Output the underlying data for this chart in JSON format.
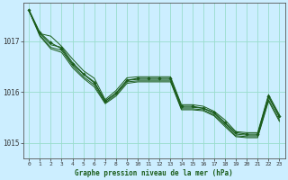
{
  "background_color": "#cceeff",
  "grid_color": "#99ddcc",
  "line_color": "#1a5c1a",
  "xlabel": "Graphe pression niveau de la mer (hPa)",
  "xlim": [
    -0.5,
    23.5
  ],
  "ylim": [
    1014.7,
    1017.75
  ],
  "yticks": [
    1015,
    1016,
    1017
  ],
  "xticks": [
    0,
    1,
    2,
    3,
    4,
    5,
    6,
    7,
    8,
    9,
    10,
    11,
    12,
    13,
    14,
    15,
    16,
    17,
    18,
    19,
    20,
    21,
    22,
    23
  ],
  "series": [
    [
      1017.6,
      1017.15,
      1017.1,
      1016.9,
      1016.65,
      1016.42,
      1016.27,
      1015.85,
      1016.03,
      1016.28,
      1016.3,
      1016.3,
      1016.3,
      1016.3,
      1015.75,
      1015.75,
      1015.72,
      1015.62,
      1015.45,
      1015.22,
      1015.2,
      1015.2,
      1015.95,
      1015.55
    ],
    [
      1017.6,
      1017.15,
      1016.93,
      1016.88,
      1016.58,
      1016.36,
      1016.2,
      1015.82,
      1015.98,
      1016.23,
      1016.25,
      1016.25,
      1016.25,
      1016.25,
      1015.7,
      1015.7,
      1015.68,
      1015.58,
      1015.38,
      1015.17,
      1015.15,
      1015.15,
      1015.9,
      1015.5
    ],
    [
      1017.6,
      1017.12,
      1016.88,
      1016.82,
      1016.52,
      1016.3,
      1016.14,
      1015.79,
      1015.95,
      1016.2,
      1016.22,
      1016.22,
      1016.22,
      1016.22,
      1015.67,
      1015.67,
      1015.65,
      1015.55,
      1015.35,
      1015.14,
      1015.12,
      1015.12,
      1015.85,
      1015.45
    ],
    [
      1017.6,
      1017.1,
      1016.85,
      1016.78,
      1016.48,
      1016.27,
      1016.1,
      1015.77,
      1015.92,
      1016.17,
      1016.2,
      1016.2,
      1016.2,
      1016.2,
      1015.65,
      1015.65,
      1015.63,
      1015.53,
      1015.32,
      1015.12,
      1015.1,
      1015.1,
      1015.82,
      1015.42
    ]
  ],
  "main_series_x": [
    0,
    1,
    2,
    3,
    4,
    5,
    6,
    7,
    8,
    9,
    10,
    11,
    12,
    13,
    14,
    15,
    16,
    17,
    18,
    19,
    20,
    21,
    22,
    23
  ],
  "main_series": [
    1017.62,
    1017.17,
    1016.97,
    1016.85,
    1016.55,
    1016.35,
    1016.18,
    1015.82,
    1015.98,
    1016.23,
    1016.27,
    1016.27,
    1016.27,
    1016.27,
    1015.72,
    1015.72,
    1015.68,
    1015.6,
    1015.4,
    1015.2,
    1015.17,
    1015.17,
    1015.92,
    1015.52
  ]
}
